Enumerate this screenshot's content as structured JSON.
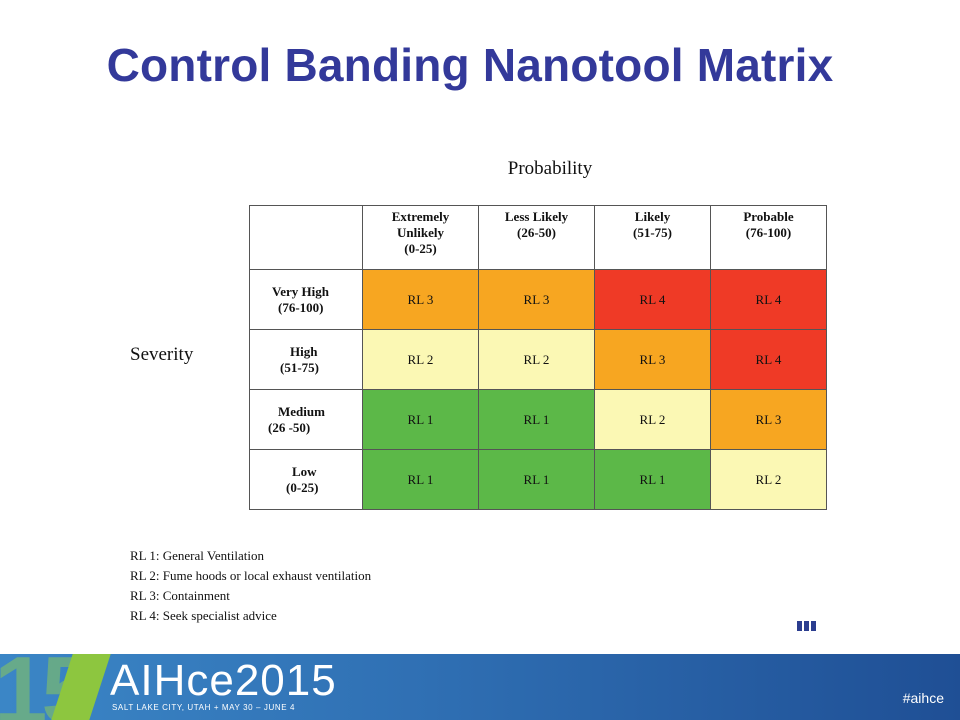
{
  "title": "Control Banding Nanotool Matrix",
  "probability_label": "Probability",
  "severity_label": "Severity",
  "columns": [
    {
      "line1": "Extremely",
      "line2": "Unlikely",
      "line3": "(0-25)"
    },
    {
      "line1": "Less Likely",
      "line2": "(26-50)",
      "line3": ""
    },
    {
      "line1": "Likely",
      "line2": "(51-75)",
      "line3": ""
    },
    {
      "line1": "Probable",
      "line2": "(76-100)",
      "line3": ""
    }
  ],
  "rows": [
    {
      "line1": "Very High",
      "line2": "(76-100)",
      "cells": [
        "RL 3",
        "RL 3",
        "RL 4",
        "RL 4"
      ]
    },
    {
      "line1": "High",
      "line2": "(51-75)",
      "cells": [
        "RL 2",
        "RL 2",
        "RL 3",
        "RL 4"
      ]
    },
    {
      "line1": "Medium",
      "line2": "(26 -50)",
      "cells": [
        "RL 1",
        "RL 1",
        "RL 2",
        "RL 3"
      ]
    },
    {
      "line1": "Low",
      "line2": "(0-25)",
      "cells": [
        "RL 1",
        "RL 1",
        "RL 1",
        "RL 2"
      ]
    }
  ],
  "level_colors": {
    "RL 1": "#5cb848",
    "RL 2": "#fbf8b4",
    "RL 3": "#f7a621",
    "RL 4": "#ef3a26"
  },
  "legend": [
    "RL 1: General Ventilation",
    "RL 2: Fume hoods or local exhaust ventilation",
    "RL 3: Containment",
    "RL 4: Seek specialist advice"
  ],
  "footer": {
    "big_number": "15",
    "brand": "AIHce2015",
    "location": "SALT LAKE CITY, UTAH  +  MAY 30 – JUNE 4",
    "hashtag": "#aihce"
  }
}
